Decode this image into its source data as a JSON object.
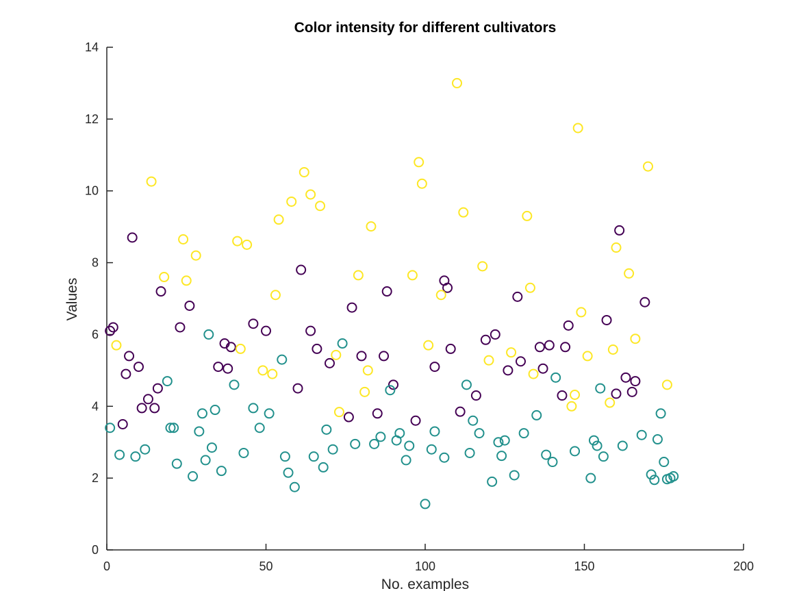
{
  "chart_data": {
    "type": "scatter",
    "title": "Color intensity for different cultivators",
    "xlabel": "No. examples",
    "ylabel": "Values",
    "xlim": [
      0,
      200
    ],
    "ylim": [
      0,
      14
    ],
    "xticks": [
      0,
      50,
      100,
      150,
      200
    ],
    "yticks": [
      0,
      2,
      4,
      6,
      8,
      10,
      12,
      14
    ],
    "grid": false,
    "marker": "circle",
    "series": [
      {
        "color": "#440154",
        "x": [
          1,
          2,
          5,
          6,
          7,
          8,
          10,
          11,
          13,
          15,
          16,
          17,
          23,
          26,
          35,
          37,
          38,
          39,
          46,
          50,
          60,
          61,
          64,
          66,
          70,
          76,
          77,
          80,
          85,
          87,
          88,
          90,
          97,
          103,
          106,
          107,
          108,
          111,
          116,
          119,
          122,
          126,
          129,
          130,
          136,
          137,
          139,
          143,
          144,
          145,
          157,
          160,
          161,
          163,
          165,
          166,
          169
        ],
        "y": [
          6.1,
          6.2,
          3.5,
          4.9,
          5.4,
          8.7,
          5.1,
          3.95,
          4.2,
          3.95,
          4.5,
          7.2,
          6.2,
          6.8,
          5.1,
          5.75,
          5.05,
          5.65,
          6.3,
          6.1,
          4.5,
          7.8,
          6.1,
          5.6,
          5.2,
          3.7,
          6.75,
          5.4,
          3.8,
          5.4,
          7.2,
          4.6,
          3.6,
          5.1,
          7.5,
          7.3,
          5.6,
          3.85,
          4.3,
          5.85,
          6.0,
          5.0,
          7.05,
          5.25,
          5.65,
          5.05,
          5.7,
          4.3,
          5.65,
          6.25,
          6.4,
          4.35,
          8.9,
          4.8,
          4.4,
          4.7,
          6.9
        ]
      },
      {
        "color": "#21908c",
        "x": [
          1,
          4,
          9,
          12,
          19,
          20,
          21,
          22,
          27,
          29,
          30,
          31,
          32,
          33,
          34,
          36,
          40,
          43,
          46,
          48,
          51,
          55,
          56,
          57,
          59,
          65,
          68,
          69,
          71,
          74,
          78,
          84,
          86,
          89,
          91,
          92,
          94,
          95,
          100,
          102,
          103,
          106,
          113,
          114,
          115,
          117,
          121,
          123,
          124,
          125,
          128,
          131,
          135,
          138,
          140,
          141,
          147,
          152,
          153,
          154,
          155,
          156,
          162,
          168,
          171,
          172,
          173,
          174,
          175,
          176,
          177,
          178
        ],
        "y": [
          3.4,
          2.65,
          2.6,
          2.8,
          4.7,
          3.4,
          3.4,
          2.4,
          2.05,
          3.3,
          3.8,
          2.5,
          6.0,
          2.85,
          3.9,
          2.2,
          4.6,
          2.7,
          3.95,
          3.4,
          3.8,
          5.3,
          2.6,
          2.15,
          1.75,
          2.6,
          2.3,
          3.35,
          2.8,
          5.75,
          2.95,
          2.95,
          3.15,
          4.45,
          3.05,
          3.25,
          2.5,
          2.9,
          1.28,
          2.8,
          3.3,
          2.57,
          4.6,
          2.7,
          3.6,
          3.25,
          1.9,
          3.0,
          2.62,
          3.05,
          2.08,
          3.25,
          3.75,
          2.65,
          2.45,
          4.8,
          2.75,
          2.0,
          3.05,
          2.9,
          4.5,
          2.6,
          2.9,
          3.2,
          2.1,
          1.95,
          3.08,
          3.8,
          2.45,
          1.97,
          2.0,
          2.05
        ]
      },
      {
        "color": "#fde725",
        "x": [
          3,
          14,
          18,
          24,
          25,
          28,
          41,
          42,
          44,
          49,
          52,
          53,
          54,
          58,
          62,
          64,
          67,
          72,
          73,
          79,
          81,
          82,
          83,
          96,
          98,
          99,
          101,
          105,
          110,
          112,
          118,
          120,
          127,
          132,
          133,
          134,
          146,
          147,
          148,
          149,
          151,
          158,
          159,
          160,
          164,
          166,
          170,
          176
        ],
        "y": [
          5.7,
          10.26,
          7.6,
          8.65,
          7.5,
          8.2,
          8.6,
          5.6,
          8.5,
          5.0,
          4.9,
          7.1,
          9.2,
          9.7,
          10.52,
          9.9,
          9.58,
          5.43,
          3.84,
          7.65,
          4.4,
          5.0,
          9.01,
          7.65,
          10.8,
          10.2,
          5.7,
          7.1,
          13.0,
          9.4,
          7.9,
          5.28,
          5.5,
          9.3,
          7.3,
          4.9,
          4.0,
          4.32,
          11.75,
          6.62,
          5.4,
          4.1,
          5.58,
          8.42,
          7.7,
          5.88,
          10.68,
          4.6
        ]
      }
    ]
  }
}
